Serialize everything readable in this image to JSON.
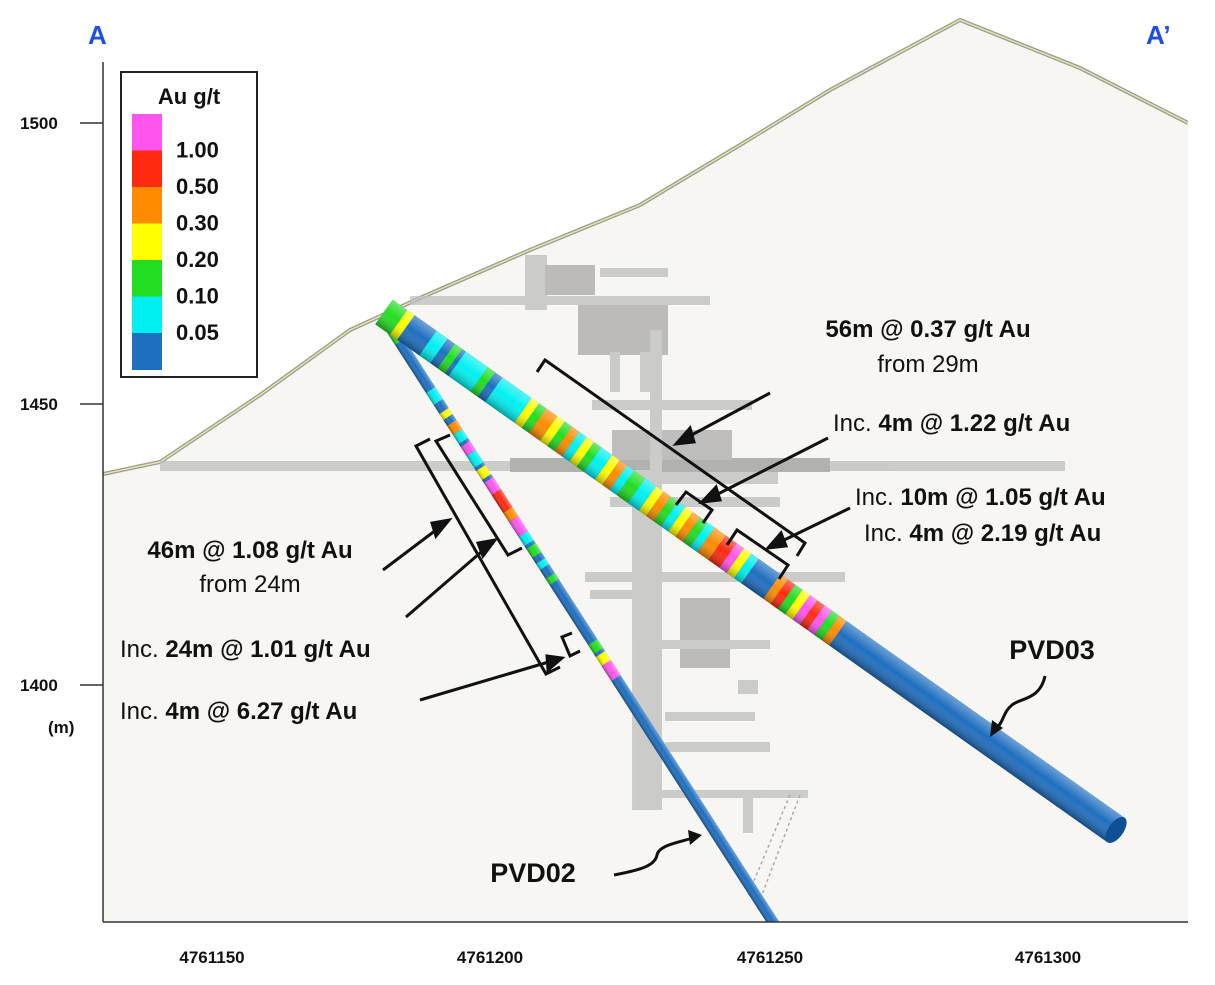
{
  "section": {
    "start_label": "A",
    "end_label": "A’"
  },
  "elevation_axis": {
    "ticks": [
      "1500",
      "1450",
      "1400"
    ],
    "unit": "(m)"
  },
  "northing_axis": {
    "ticks": [
      "4761150",
      "4761200",
      "4761250",
      "4761300"
    ]
  },
  "legend": {
    "title": "Au g/t",
    "classes": [
      {
        "label": "1.00",
        "color": "#ff55ee"
      },
      {
        "label": "0.50",
        "color": "#ff2a10"
      },
      {
        "label": "0.30",
        "color": "#ff8c00"
      },
      {
        "label": "0.20",
        "color": "#ffff00"
      },
      {
        "label": "0.10",
        "color": "#22dd22"
      },
      {
        "label": "0.05",
        "color": "#00f0f0"
      },
      {
        "label": "",
        "color": "#1f6fc0"
      }
    ]
  },
  "drillholes": [
    {
      "name": "PVD02"
    },
    {
      "name": "PVD03"
    }
  ],
  "annotations": {
    "pvd03_main": {
      "prefix": "",
      "bold": "56m @ 0.37 g/t Au",
      "line2": "from 29m"
    },
    "pvd03_inc1": {
      "prefix": "Inc. ",
      "bold": "4m @ 1.22 g/t Au"
    },
    "pvd03_inc2": {
      "prefix": "Inc. ",
      "bold": "10m @ 1.05 g/t Au"
    },
    "pvd03_inc3": {
      "prefix": "Inc. ",
      "bold": "4m @ 2.19 g/t Au"
    },
    "pvd02_main": {
      "prefix": "",
      "bold": "46m @ 1.08 g/t Au",
      "line2": "from 24m"
    },
    "pvd02_inc1": {
      "prefix": "Inc. ",
      "bold": "24m @ 1.01 g/t Au"
    },
    "pvd02_inc2": {
      "prefix": "Inc. ",
      "bold": "4m @ 6.27 g/t Au"
    }
  }
}
